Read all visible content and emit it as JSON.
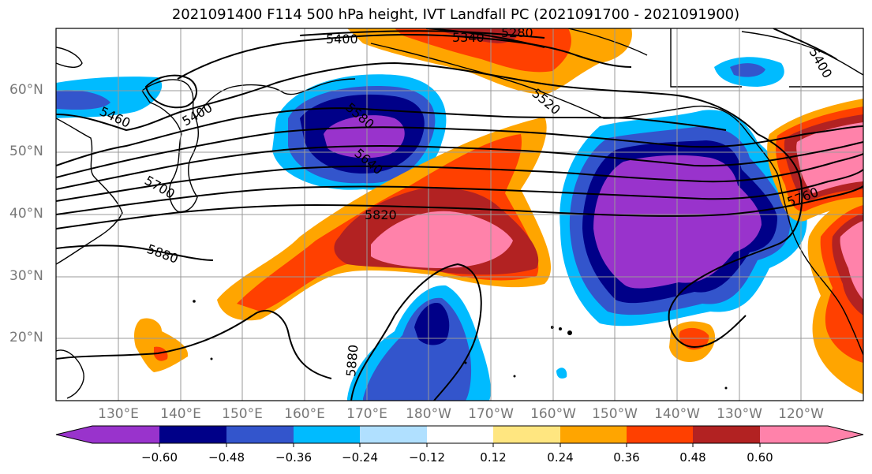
{
  "title": "2021091400 F114 500 hPa height, IVT Landfall PC (2021091700 - 2021091900)",
  "lat_labels": [
    "60°N",
    "50°N",
    "40°N",
    "30°N",
    "20°N"
  ],
  "lon_labels": [
    "130°E",
    "140°E",
    "150°E",
    "160°E",
    "170°E",
    "180°W",
    "170°W",
    "160°W",
    "150°W",
    "140°W",
    "130°W",
    "120°W"
  ],
  "contour_labels": [
    "5400",
    "5340",
    "5280",
    "5460",
    "5400",
    "5580",
    "5640",
    "5520",
    "5700",
    "5820",
    "5880",
    "5880",
    "5760",
    "5400"
  ],
  "colorbar": {
    "ticks": [
      "−0.60",
      "−0.48",
      "−0.36",
      "−0.24",
      "−0.12",
      "0.12",
      "0.24",
      "0.36",
      "0.48",
      "0.60"
    ],
    "colors": [
      "#9933cc",
      "#000088",
      "#3355cc",
      "#00bbff",
      "#b0e0ff",
      "#ffffff",
      "#ffe680",
      "#ffa500",
      "#ff4000",
      "#b22222",
      "#ff82aa"
    ]
  }
}
